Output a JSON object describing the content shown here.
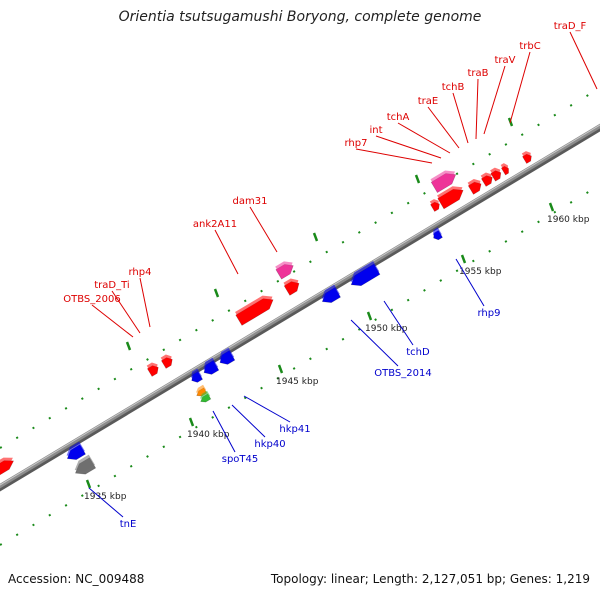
{
  "title": "Orientia tsutsugamushi Boryong, complete genome",
  "footer": {
    "accession": "Accession: NC_009488",
    "summary": "Topology: linear; Length: 2,127,051 bp; Genes: 1,219"
  },
  "colors": {
    "forward_label": "#dd0000",
    "reverse_label": "#0000cc",
    "backbone": "#8c8c8c",
    "tick": "#1a8a1a",
    "gene_red": "#ff0000",
    "gene_pink": "#ee3399",
    "gene_blue": "#0000ee",
    "gene_gray": "#707070",
    "gene_orange": "#ff8800",
    "gene_green": "#33bb33"
  },
  "position_ticks": [
    {
      "label": "1935 kbp"
    },
    {
      "label": "1940 kbp"
    },
    {
      "label": "1945 kbp"
    },
    {
      "label": "1950 kbp"
    },
    {
      "label": "1955 kbp"
    },
    {
      "label": "1960 kbp"
    }
  ],
  "forward_labels": [
    {
      "name": "OTBS_2006",
      "icon": "label-forward"
    },
    {
      "name": "traD_Ti",
      "icon": "label-forward"
    },
    {
      "name": "rhp4",
      "icon": "label-forward"
    },
    {
      "name": "ank2A11",
      "icon": "label-forward"
    },
    {
      "name": "dam31",
      "icon": "label-forward"
    },
    {
      "name": "rhp7",
      "icon": "label-forward"
    },
    {
      "name": "int",
      "icon": "label-forward"
    },
    {
      "name": "tchA",
      "icon": "label-forward"
    },
    {
      "name": "traE",
      "icon": "label-forward"
    },
    {
      "name": "tchB",
      "icon": "label-forward"
    },
    {
      "name": "traB",
      "icon": "label-forward"
    },
    {
      "name": "traV",
      "icon": "label-forward"
    },
    {
      "name": "trbC",
      "icon": "label-forward"
    },
    {
      "name": "traD_F",
      "icon": "label-forward"
    }
  ],
  "reverse_labels": [
    {
      "name": "tnE",
      "icon": "label-reverse"
    },
    {
      "name": "spoT45",
      "icon": "label-reverse"
    },
    {
      "name": "hkp40",
      "icon": "label-reverse"
    },
    {
      "name": "hkp41",
      "icon": "label-reverse"
    },
    {
      "name": "OTBS_2014",
      "icon": "label-reverse"
    },
    {
      "name": "tchD",
      "icon": "label-reverse"
    },
    {
      "name": "rhp9",
      "icon": "label-reverse"
    }
  ]
}
